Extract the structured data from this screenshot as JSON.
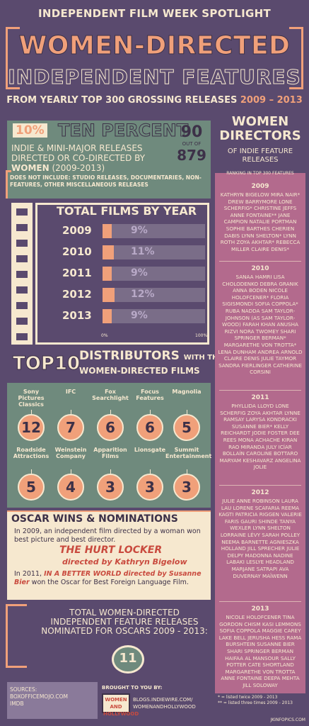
{
  "header": {
    "kicker": "INDEPENDENT FILM WEEK SPOTLIGHT",
    "title": "WOMEN-DIRECTED",
    "subtitle": "INDEPENDENT FEATURES",
    "line": "FROM YEARLY TOP 300 GROSSING RELEASES",
    "years": "2009 – 2013"
  },
  "ten_percent": {
    "pct": "10%",
    "title": "TEN PERCENT",
    "body_pre": "INDIE & MINI-MAJOR RELEASES DIRECTED OR CO-DIRECTED BY",
    "body_bold": "WOMEN",
    "body_post": "(2009-2013)",
    "count_big": "90",
    "count_mid": "OUT OF",
    "count_total": "879",
    "note": "DOES NOT INCLUDE: STUDIO RELEASES, DOCUMENTARIES, NON-FEATURES, OTHER MISCELLANEOUS RELEASES"
  },
  "films_by_year": {
    "title": "TOTAL FILMS BY YEAR",
    "axis_min": "0%",
    "axis_max": "100%",
    "rows": [
      {
        "year": "2009",
        "label": "9%",
        "value": 9
      },
      {
        "year": "2010",
        "label": "11%",
        "value": 11
      },
      {
        "year": "2011",
        "label": "9%",
        "value": 9
      },
      {
        "year": "2012",
        "label": "12%",
        "value": 12
      },
      {
        "year": "2013",
        "label": "9%",
        "value": 9
      }
    ]
  },
  "distributors": {
    "title_top": "TOP",
    "title_num": "10",
    "title_line1": "DISTRIBUTORS",
    "title_line2": "WITH THE MOST",
    "title_line3": "WOMEN-DIRECTED FILMS",
    "items": [
      {
        "name": "Sony Pictures Classics",
        "count": "12"
      },
      {
        "name": "IFC",
        "count": "7"
      },
      {
        "name": "Fox Searchlight",
        "count": "6"
      },
      {
        "name": "Focus Features",
        "count": "6"
      },
      {
        "name": "Magnolia",
        "count": "5"
      },
      {
        "name": "Roadside Attractions",
        "count": "5"
      },
      {
        "name": "Weinstein Company",
        "count": "4"
      },
      {
        "name": "Apparition Films",
        "count": "3"
      },
      {
        "name": "Lionsgate",
        "count": "3"
      },
      {
        "name": "Summit Entertainment",
        "count": "3"
      }
    ]
  },
  "oscars": {
    "title": "OSCAR WINS & NOMINATIONS",
    "p1": "In 2009, an independent film directed by a woman won best picture and best director.",
    "film1": "THE HURT LOCKER",
    "film1_by": "directed by Kathryn Bigelow",
    "p2_pre": "In 2011,",
    "p2_film": "IN A BETTER WORLD directed by Susanne Bier",
    "p2_post": "won the Oscar for Best Foreign Language Film.",
    "total_label": "TOTAL WOMEN-DIRECTED INDEPENDENT FEATURE RELEASES NOMINATED FOR OSCARS 2009 - 2013:",
    "total_value": "11"
  },
  "footer": {
    "sources_label": "SOURCES:",
    "source1": "BOXOFFICEMOJO.COM",
    "source2": "IMDB",
    "brought": "BROUGHT TO YOU BY:",
    "logo": "WOMEN AND HOLLYWOOD",
    "link1": "BLOGS.INDIEWIRE.COM/",
    "link2": "WOMENANDHOLLYWOOD",
    "credit": "JKINFOPICS.COM"
  },
  "right": {
    "title": "WOMEN DIRECTORS",
    "sub": "OF INDIE FEATURE RELEASES",
    "rank": "RANKING IN TOP 300 FEATURES",
    "years": [
      {
        "year": "2009",
        "names": "KATHRYN BIGELOW MIRA NAIR* DREW BARRYMORE LONE SCHERFIG* CHRISTINE JEFFS ANNE FONTAINE** JANE CAMPION NATALIE PORTMAN SOPHIE BARTHES CHERIEN DABIS LYNN SHELTON* LYNN ROTH ZOYA AKHTAR* REBECCA MILLER CLAIRE DENIS*"
      },
      {
        "year": "2010",
        "names": "SANAA HAMRI LISA CHOLODENKO DEBRA GRANIK ANNA BODEN NICOLE HOLOFCENER* FLORIA SIGISMONDI SOFIA COPPOLA* RUBA NADDA SAM TAYLOR-JOHNSON (AS SAM TAYLOR-WOOD) FARAH KHAN ANUSHA RIZVI NORA TWOMEY SHARI SPRINGER BERMAN* MARGARETHE VON TROTTA* LENA DUNHAM ANDREA ARNOLD CLAIRE DENIS JULIE TAYMOR SANDRA FIERLINGER CATHERINE CORSINI"
      },
      {
        "year": "2011",
        "names": "PHYLLIDA LLOYD LONE SCHERFIG ZOYA AKHTAR LYNNE RAMSAY LARYSA KONDRACKI SUSANNE BIER* KELLY REICHARDT JODIE FOSTER DEE REES MONA ACHACHE KIRAN RAO MIRANDA JULY ICÍAR BOLLAÍN CAROLINE BOTTARO MARYAM KESHAVARZ ANGELINA JOLIE"
      },
      {
        "year": "2012",
        "names": "JULIE ANNE ROBINSON LAURA LAU LORENE SCAFARIA REEMA KAGTI PATRICIA RIGGEN VALERIE FARIS GAURI SHINDE TANYA WEXLER LYNN SHELTON LORRAINE LÉVY SARAH POLLEY NEEMA BARNETTE AGNIESZKA HOLLAND JILL SPRECHER JULIE DELPY MADONNA NADINE LABAKI LESLYE HEADLAND MARJANE SATRAPI AVA DUVERNAY MAÏWENN"
      },
      {
        "year": "2013",
        "names": "NICOLE HOLOFCENER TINA GORDON CHISM KASI LEMMONS SOFIA COPPOLA MAGGIE CAREY LAKE BELL JERUSHA HESS RAMA BURSHTEIN SUSANNE BIER SHARI SPRINGER BERMAN HAIFAA AL MANSOUR SALLY POTTER CATE SHORTLAND MARGARETHE VON TROTTA ANNE FONTAINE DEEPA MEHTA JILL SOLOWAY"
      }
    ],
    "foot1": "* = listed twice 2009 - 2013",
    "foot2": "** = listed three times 2009 - 2013"
  }
}
